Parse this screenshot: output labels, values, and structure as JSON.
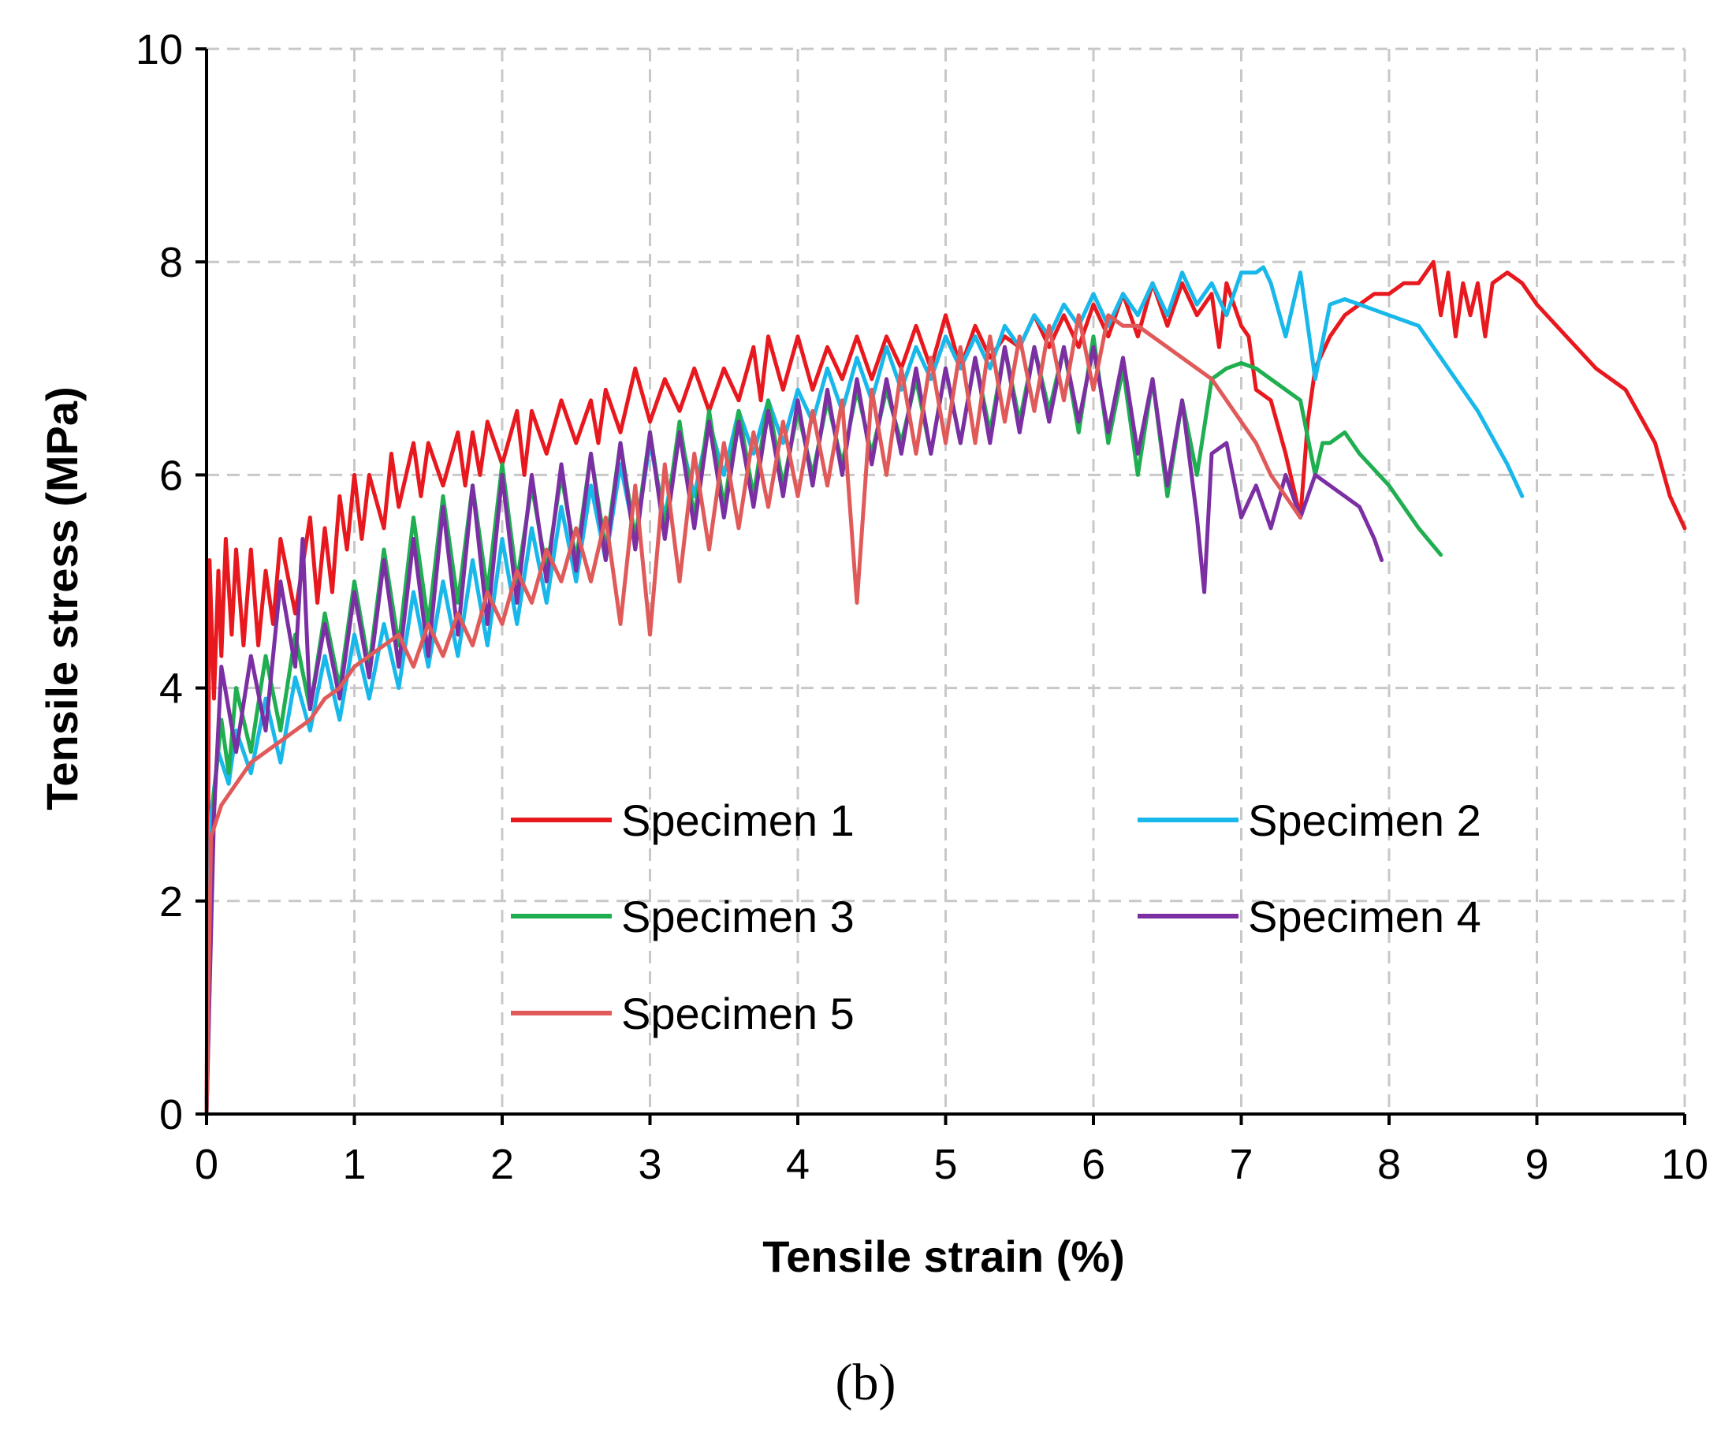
{
  "panel_label": "(b)",
  "chart_data": {
    "type": "line",
    "title": "",
    "xlabel": "Tensile strain (%)",
    "ylabel": "Tensile stress (MPa)",
    "xlim": [
      0,
      10
    ],
    "ylim": [
      0,
      10
    ],
    "xticks": [
      0,
      1,
      2,
      3,
      4,
      5,
      6,
      7,
      8,
      9,
      10
    ],
    "yticks": [
      0,
      2,
      4,
      6,
      8,
      10
    ],
    "grid": true,
    "legend_position": "center",
    "series": [
      {
        "name": "Specimen 1",
        "color": "#e8191e",
        "x": [
          0,
          0.02,
          0.05,
          0.08,
          0.1,
          0.13,
          0.17,
          0.2,
          0.25,
          0.3,
          0.35,
          0.4,
          0.45,
          0.5,
          0.6,
          0.7,
          0.75,
          0.8,
          0.85,
          0.9,
          0.95,
          1.0,
          1.05,
          1.1,
          1.2,
          1.25,
          1.3,
          1.4,
          1.45,
          1.5,
          1.6,
          1.7,
          1.75,
          1.8,
          1.85,
          1.9,
          2.0,
          2.1,
          2.15,
          2.2,
          2.3,
          2.4,
          2.5,
          2.6,
          2.65,
          2.7,
          2.8,
          2.9,
          3.0,
          3.1,
          3.2,
          3.3,
          3.4,
          3.5,
          3.6,
          3.7,
          3.75,
          3.8,
          3.9,
          4.0,
          4.1,
          4.2,
          4.3,
          4.4,
          4.5,
          4.6,
          4.7,
          4.8,
          4.9,
          5.0,
          5.1,
          5.2,
          5.3,
          5.4,
          5.5,
          5.6,
          5.7,
          5.8,
          5.9,
          6.0,
          6.1,
          6.2,
          6.3,
          6.4,
          6.5,
          6.6,
          6.7,
          6.8,
          6.85,
          6.9,
          7.0,
          7.05,
          7.1,
          7.2,
          7.3,
          7.4,
          7.45,
          7.5,
          7.6,
          7.7,
          7.8,
          7.9,
          8.0,
          8.1,
          8.2,
          8.3,
          8.35,
          8.4,
          8.45,
          8.5,
          8.55,
          8.6,
          8.65,
          8.7,
          8.8,
          8.9,
          9.0,
          9.2,
          9.4,
          9.6,
          9.8,
          9.9,
          10.0
        ],
        "y": [
          0,
          5.2,
          3.9,
          5.1,
          4.3,
          5.4,
          4.5,
          5.3,
          4.4,
          5.3,
          4.4,
          5.1,
          4.6,
          5.4,
          4.7,
          5.6,
          4.8,
          5.5,
          4.9,
          5.8,
          5.3,
          6.0,
          5.4,
          6.0,
          5.5,
          6.2,
          5.7,
          6.3,
          5.8,
          6.3,
          5.9,
          6.4,
          5.9,
          6.4,
          6.0,
          6.5,
          6.1,
          6.6,
          6.0,
          6.6,
          6.2,
          6.7,
          6.3,
          6.7,
          6.3,
          6.8,
          6.4,
          7.0,
          6.5,
          6.9,
          6.6,
          7.0,
          6.6,
          7.0,
          6.7,
          7.2,
          6.7,
          7.3,
          6.8,
          7.3,
          6.8,
          7.2,
          6.9,
          7.3,
          6.9,
          7.3,
          7.0,
          7.4,
          7.0,
          7.5,
          7.0,
          7.4,
          7.1,
          7.3,
          7.2,
          7.5,
          7.2,
          7.5,
          7.2,
          7.6,
          7.3,
          7.7,
          7.3,
          7.8,
          7.4,
          7.8,
          7.5,
          7.7,
          7.2,
          7.8,
          7.4,
          7.3,
          6.8,
          6.7,
          6.2,
          5.6,
          6.5,
          7.0,
          7.3,
          7.5,
          7.6,
          7.7,
          7.7,
          7.8,
          7.8,
          8.0,
          7.5,
          7.9,
          7.3,
          7.8,
          7.5,
          7.8,
          7.3,
          7.8,
          7.9,
          7.8,
          7.6,
          7.3,
          7.0,
          6.8,
          6.3,
          5.8,
          5.5
        ]
      },
      {
        "name": "Specimen 2",
        "color": "#19b8ea",
        "x": [
          0,
          0.03,
          0.08,
          0.15,
          0.2,
          0.3,
          0.4,
          0.5,
          0.6,
          0.7,
          0.8,
          0.9,
          1.0,
          1.1,
          1.2,
          1.3,
          1.4,
          1.5,
          1.6,
          1.7,
          1.8,
          1.9,
          2.0,
          2.1,
          2.2,
          2.3,
          2.4,
          2.5,
          2.6,
          2.7,
          2.8,
          2.9,
          3.0,
          3.1,
          3.2,
          3.3,
          3.4,
          3.5,
          3.6,
          3.7,
          3.8,
          3.9,
          4.0,
          4.1,
          4.2,
          4.3,
          4.4,
          4.5,
          4.6,
          4.7,
          4.8,
          4.9,
          5.0,
          5.1,
          5.2,
          5.3,
          5.4,
          5.5,
          5.6,
          5.7,
          5.8,
          5.9,
          6.0,
          6.1,
          6.2,
          6.3,
          6.4,
          6.5,
          6.6,
          6.7,
          6.8,
          6.9,
          7.0,
          7.1,
          7.15,
          7.2,
          7.3,
          7.4,
          7.5,
          7.6,
          7.7,
          7.8,
          8.0,
          8.2,
          8.4,
          8.6,
          8.8,
          8.9
        ],
        "y": [
          0,
          2.8,
          3.4,
          3.1,
          3.6,
          3.2,
          3.9,
          3.3,
          4.1,
          3.6,
          4.3,
          3.7,
          4.5,
          3.9,
          4.6,
          4.0,
          4.9,
          4.2,
          5.0,
          4.3,
          5.2,
          4.4,
          5.4,
          4.6,
          5.5,
          4.8,
          5.7,
          5.0,
          5.9,
          5.2,
          6.1,
          5.4,
          6.3,
          5.6,
          6.4,
          5.8,
          6.5,
          6.0,
          6.6,
          6.2,
          6.7,
          6.3,
          6.8,
          6.5,
          7.0,
          6.6,
          7.1,
          6.7,
          7.2,
          6.8,
          7.2,
          6.9,
          7.3,
          7.0,
          7.3,
          7.0,
          7.4,
          7.2,
          7.5,
          7.3,
          7.6,
          7.4,
          7.7,
          7.4,
          7.7,
          7.5,
          7.8,
          7.5,
          7.9,
          7.6,
          7.8,
          7.5,
          7.9,
          7.9,
          7.95,
          7.8,
          7.3,
          7.9,
          6.9,
          7.6,
          7.65,
          7.6,
          7.5,
          7.4,
          7.0,
          6.6,
          6.1,
          5.8
        ]
      },
      {
        "name": "Specimen 3",
        "color": "#1fae50",
        "x": [
          0,
          0.05,
          0.1,
          0.15,
          0.2,
          0.3,
          0.4,
          0.5,
          0.6,
          0.7,
          0.8,
          0.9,
          1.0,
          1.1,
          1.2,
          1.3,
          1.4,
          1.5,
          1.6,
          1.7,
          1.8,
          1.9,
          2.0,
          2.1,
          2.2,
          2.3,
          2.4,
          2.5,
          2.6,
          2.7,
          2.8,
          2.9,
          3.0,
          3.1,
          3.2,
          3.3,
          3.4,
          3.5,
          3.6,
          3.7,
          3.8,
          3.9,
          4.0,
          4.1,
          4.2,
          4.3,
          4.4,
          4.5,
          4.6,
          4.7,
          4.8,
          4.9,
          5.0,
          5.1,
          5.2,
          5.3,
          5.4,
          5.5,
          5.6,
          5.7,
          5.8,
          5.9,
          6.0,
          6.1,
          6.2,
          6.3,
          6.4,
          6.5,
          6.6,
          6.7,
          6.8,
          6.9,
          7.0,
          7.1,
          7.2,
          7.3,
          7.4,
          7.5,
          7.55,
          7.6,
          7.7,
          7.8,
          8.0,
          8.2,
          8.35
        ],
        "y": [
          0,
          3.0,
          3.7,
          3.2,
          4.0,
          3.4,
          4.3,
          3.6,
          4.5,
          3.8,
          4.7,
          4.0,
          5.0,
          4.2,
          5.3,
          4.4,
          5.6,
          4.6,
          5.8,
          4.8,
          5.9,
          4.9,
          6.1,
          5.0,
          5.9,
          5.1,
          6.0,
          5.2,
          6.2,
          5.3,
          6.3,
          5.4,
          6.4,
          5.5,
          6.5,
          5.6,
          6.6,
          5.7,
          6.6,
          5.8,
          6.7,
          5.9,
          6.6,
          6.0,
          6.7,
          6.1,
          6.8,
          6.2,
          6.8,
          6.3,
          6.9,
          6.2,
          7.0,
          6.3,
          7.1,
          6.4,
          7.2,
          6.5,
          7.2,
          6.6,
          7.2,
          6.4,
          7.3,
          6.3,
          7.0,
          6.0,
          6.9,
          5.8,
          6.7,
          6.0,
          6.9,
          7.0,
          7.05,
          7.0,
          6.9,
          6.8,
          6.7,
          6.0,
          6.3,
          6.3,
          6.4,
          6.2,
          5.9,
          5.5,
          5.25
        ]
      },
      {
        "name": "Specimen 4",
        "color": "#7b2fa3",
        "x": [
          0,
          0.05,
          0.1,
          0.2,
          0.3,
          0.4,
          0.5,
          0.6,
          0.65,
          0.7,
          0.8,
          0.9,
          1.0,
          1.1,
          1.2,
          1.3,
          1.4,
          1.5,
          1.6,
          1.7,
          1.8,
          1.9,
          2.0,
          2.1,
          2.2,
          2.3,
          2.4,
          2.5,
          2.6,
          2.7,
          2.8,
          2.9,
          3.0,
          3.1,
          3.2,
          3.3,
          3.4,
          3.5,
          3.6,
          3.7,
          3.8,
          3.9,
          4.0,
          4.1,
          4.2,
          4.3,
          4.4,
          4.5,
          4.6,
          4.7,
          4.8,
          4.9,
          5.0,
          5.1,
          5.2,
          5.3,
          5.4,
          5.5,
          5.6,
          5.7,
          5.8,
          5.9,
          6.0,
          6.1,
          6.2,
          6.3,
          6.4,
          6.5,
          6.6,
          6.7,
          6.75,
          6.8,
          6.9,
          7.0,
          7.1,
          7.2,
          7.3,
          7.4,
          7.5,
          7.6,
          7.7,
          7.8,
          7.9,
          7.95
        ],
        "y": [
          0,
          2.8,
          4.2,
          3.4,
          4.3,
          3.6,
          5.0,
          4.2,
          5.4,
          3.8,
          4.6,
          3.9,
          4.9,
          4.1,
          5.2,
          4.2,
          5.4,
          4.3,
          5.7,
          4.5,
          5.9,
          4.6,
          6.0,
          4.8,
          6.0,
          5.0,
          6.1,
          5.1,
          6.2,
          5.2,
          6.3,
          5.3,
          6.4,
          5.4,
          6.4,
          5.5,
          6.5,
          5.6,
          6.5,
          5.7,
          6.6,
          5.8,
          6.7,
          5.9,
          6.8,
          6.0,
          6.9,
          6.1,
          6.9,
          6.2,
          7.0,
          6.2,
          7.0,
          6.3,
          7.1,
          6.3,
          7.2,
          6.4,
          7.2,
          6.5,
          7.2,
          6.5,
          7.2,
          6.4,
          7.1,
          6.2,
          6.9,
          5.9,
          6.7,
          5.6,
          4.9,
          6.2,
          6.3,
          5.6,
          5.9,
          5.5,
          6.0,
          5.6,
          6.0,
          5.9,
          5.8,
          5.7,
          5.4,
          5.2
        ]
      },
      {
        "name": "Specimen 5",
        "color": "#e05a5a",
        "x": [
          0,
          0.03,
          0.1,
          0.2,
          0.3,
          0.4,
          0.5,
          0.6,
          0.7,
          0.8,
          0.9,
          1.0,
          1.1,
          1.2,
          1.3,
          1.4,
          1.5,
          1.6,
          1.7,
          1.8,
          1.9,
          2.0,
          2.1,
          2.2,
          2.3,
          2.4,
          2.5,
          2.6,
          2.7,
          2.8,
          2.9,
          3.0,
          3.1,
          3.2,
          3.3,
          3.4,
          3.5,
          3.6,
          3.7,
          3.8,
          3.9,
          4.0,
          4.1,
          4.2,
          4.3,
          4.4,
          4.5,
          4.6,
          4.7,
          4.8,
          4.9,
          5.0,
          5.1,
          5.2,
          5.3,
          5.4,
          5.5,
          5.6,
          5.7,
          5.8,
          5.9,
          6.0,
          6.1,
          6.2,
          6.3,
          6.4,
          6.5,
          6.6,
          6.7,
          6.8,
          6.9,
          7.0,
          7.1,
          7.2,
          7.3,
          7.4
        ],
        "y": [
          0,
          2.6,
          2.9,
          3.1,
          3.3,
          3.4,
          3.5,
          3.6,
          3.7,
          3.9,
          4.0,
          4.2,
          4.3,
          4.4,
          4.5,
          4.2,
          4.6,
          4.3,
          4.7,
          4.4,
          4.9,
          4.6,
          5.1,
          4.8,
          5.3,
          5.0,
          5.5,
          5.0,
          5.6,
          4.6,
          5.9,
          4.5,
          6.1,
          5.0,
          6.2,
          5.3,
          6.3,
          5.5,
          6.4,
          5.7,
          6.5,
          5.8,
          6.6,
          5.9,
          6.7,
          4.8,
          6.8,
          6.0,
          7.0,
          6.2,
          7.1,
          6.3,
          7.2,
          6.3,
          7.3,
          6.5,
          7.3,
          6.6,
          7.4,
          6.7,
          7.5,
          6.8,
          7.5,
          7.4,
          7.4,
          7.3,
          7.2,
          7.1,
          7.0,
          6.9,
          6.7,
          6.5,
          6.3,
          6.0,
          5.8,
          5.6
        ]
      }
    ]
  }
}
